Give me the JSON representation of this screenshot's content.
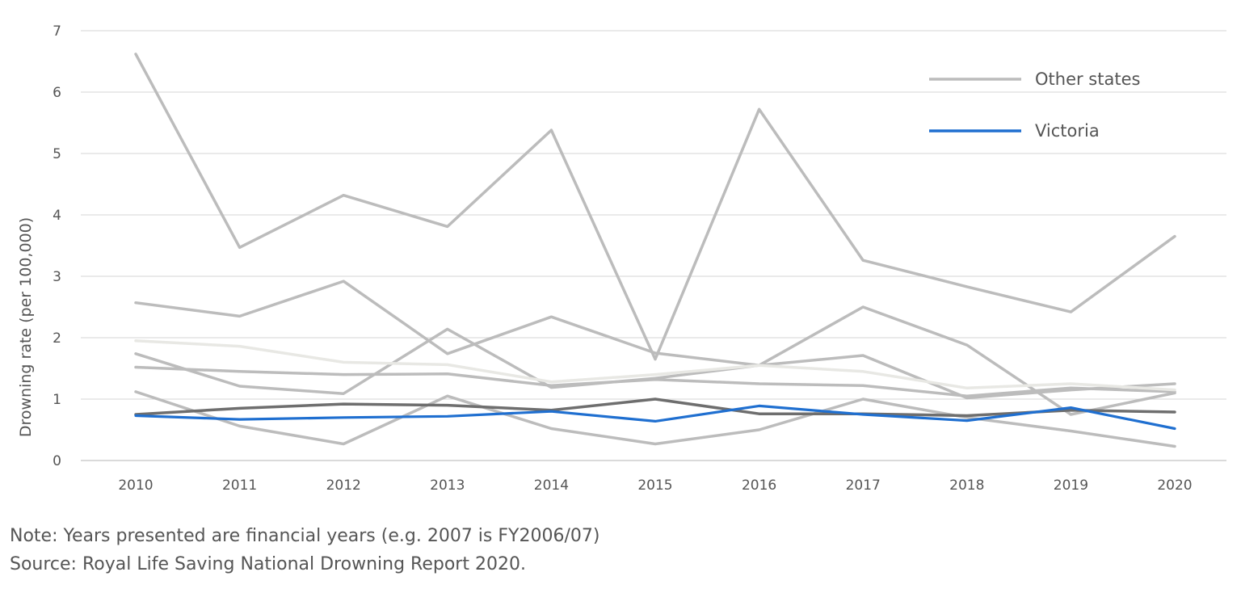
{
  "chart_data": {
    "type": "line",
    "ylabel": "Drowning rate (per 100,000)",
    "xlabel": "",
    "ylim": [
      0,
      7
    ],
    "yticks": [
      0,
      1,
      2,
      3,
      4,
      5,
      6,
      7
    ],
    "categories": [
      "2010",
      "2011",
      "2012",
      "2013",
      "2014",
      "2015",
      "2016",
      "2017",
      "2018",
      "2019",
      "2020"
    ],
    "grid": true,
    "legend_position": "top-right",
    "legend": [
      {
        "label": "Other states",
        "color": "#bcbcbc"
      },
      {
        "label": "Victoria",
        "color": "#1f6fd0"
      }
    ],
    "series": [
      {
        "group": "Other states",
        "color": "#bcbcbc",
        "values": [
          6.62,
          3.47,
          4.32,
          3.81,
          5.38,
          1.65,
          5.72,
          3.26,
          2.83,
          2.42,
          3.65
        ]
      },
      {
        "group": "Other states",
        "color": "#bcbcbc",
        "values": [
          2.57,
          2.35,
          2.92,
          1.74,
          2.34,
          1.75,
          1.55,
          2.5,
          1.88,
          0.75,
          1.1
        ]
      },
      {
        "group": "Other states",
        "color": "#bcbcbc",
        "values": [
          1.74,
          1.21,
          1.09,
          2.14,
          1.19,
          1.34,
          1.55,
          1.71,
          1.02,
          1.15,
          1.25
        ]
      },
      {
        "group": "Other states",
        "color": "#bcbcbc",
        "values": [
          1.52,
          1.45,
          1.4,
          1.41,
          1.22,
          1.32,
          1.25,
          1.22,
          1.05,
          1.18,
          1.12
        ]
      },
      {
        "group": "Other states",
        "color": "#e8e8e4",
        "values": [
          1.95,
          1.86,
          1.6,
          1.56,
          1.28,
          1.4,
          1.55,
          1.45,
          1.18,
          1.25,
          1.15
        ]
      },
      {
        "group": "Other states",
        "color": "#bcbcbc",
        "values": [
          1.12,
          0.56,
          0.27,
          1.05,
          0.52,
          0.27,
          0.5,
          1.0,
          0.7,
          0.48,
          0.23
        ]
      },
      {
        "group": "Other states",
        "color": "#6e6e6e",
        "values": [
          0.75,
          0.85,
          0.92,
          0.9,
          0.82,
          1.0,
          0.76,
          0.76,
          0.73,
          0.82,
          0.79
        ]
      },
      {
        "group": "Victoria",
        "color": "#1f6fd0",
        "values": [
          0.73,
          0.67,
          0.7,
          0.72,
          0.8,
          0.64,
          0.89,
          0.75,
          0.65,
          0.86,
          0.52
        ]
      }
    ]
  },
  "notes": {
    "line1": "Note: Years presented are financial years (e.g. 2007 is FY2006/07)",
    "line2": "Source: Royal Life Saving National Drowning Report 2020."
  }
}
